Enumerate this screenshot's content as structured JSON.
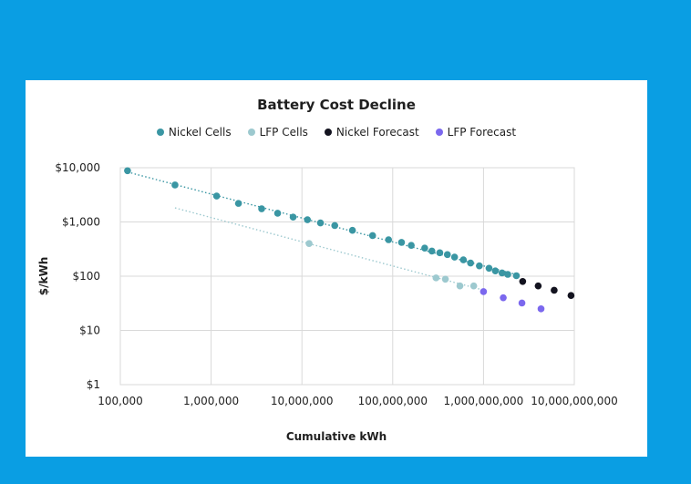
{
  "chart_data": {
    "type": "scatter",
    "title": "Battery Cost Decline",
    "xlabel": "Cumulative kWh",
    "ylabel": "$/kWh",
    "x_scale": "log",
    "y_scale": "log",
    "xlim": [
      100000,
      10000000000
    ],
    "ylim": [
      1,
      10000
    ],
    "x_tick_values": [
      100000,
      1000000,
      10000000,
      100000000,
      1000000000,
      10000000000
    ],
    "x_tick_labels": [
      "100,000",
      "1,000,000",
      "10,000,000",
      "100,000,000",
      "1,000,000,000",
      "10,000,000,000"
    ],
    "y_tick_values": [
      1,
      10,
      100,
      1000,
      10000
    ],
    "y_tick_labels": [
      "$1",
      "$10",
      "$100",
      "$1,000",
      "$10,000"
    ],
    "grid": true,
    "legend_position": "top",
    "series": [
      {
        "name": "Nickel Cells",
        "color": "#3a96a3",
        "trendline": true,
        "points": [
          [
            120000,
            8800
          ],
          [
            400000,
            4800
          ],
          [
            1150000,
            3000
          ],
          [
            2000000,
            2200
          ],
          [
            3600000,
            1750
          ],
          [
            5400000,
            1450
          ],
          [
            8000000,
            1230
          ],
          [
            11500000,
            1100
          ],
          [
            16000000,
            960
          ],
          [
            23000000,
            860
          ],
          [
            36000000,
            700
          ],
          [
            60000000,
            560
          ],
          [
            90000000,
            470
          ],
          [
            125000000,
            420
          ],
          [
            160000000,
            370
          ],
          [
            225000000,
            330
          ],
          [
            270000000,
            290
          ],
          [
            330000000,
            270
          ],
          [
            400000000,
            250
          ],
          [
            480000000,
            225
          ],
          [
            600000000,
            200
          ],
          [
            720000000,
            175
          ],
          [
            900000000,
            155
          ],
          [
            1150000000,
            140
          ],
          [
            1350000000,
            125
          ],
          [
            1600000000,
            115
          ],
          [
            1850000000,
            108
          ],
          [
            2300000000,
            102
          ]
        ]
      },
      {
        "name": "LFP Cells",
        "color": "#9dc9cf",
        "trendline": true,
        "points": [
          [
            12000000,
            400
          ],
          [
            300000000,
            93
          ],
          [
            380000000,
            88
          ],
          [
            550000000,
            66
          ],
          [
            780000000,
            66
          ]
        ]
      },
      {
        "name": "Nickel Forecast",
        "color": "#13131f",
        "trendline": false,
        "points": [
          [
            2700000000,
            80
          ],
          [
            4000000000,
            66
          ],
          [
            6000000000,
            55
          ],
          [
            9200000000,
            44
          ]
        ]
      },
      {
        "name": "LFP Forecast",
        "color": "#7b68ee",
        "trendline": false,
        "points": [
          [
            1000000000,
            52
          ],
          [
            1650000000,
            40
          ],
          [
            2650000000,
            32
          ],
          [
            4300000000,
            25
          ]
        ]
      }
    ]
  }
}
